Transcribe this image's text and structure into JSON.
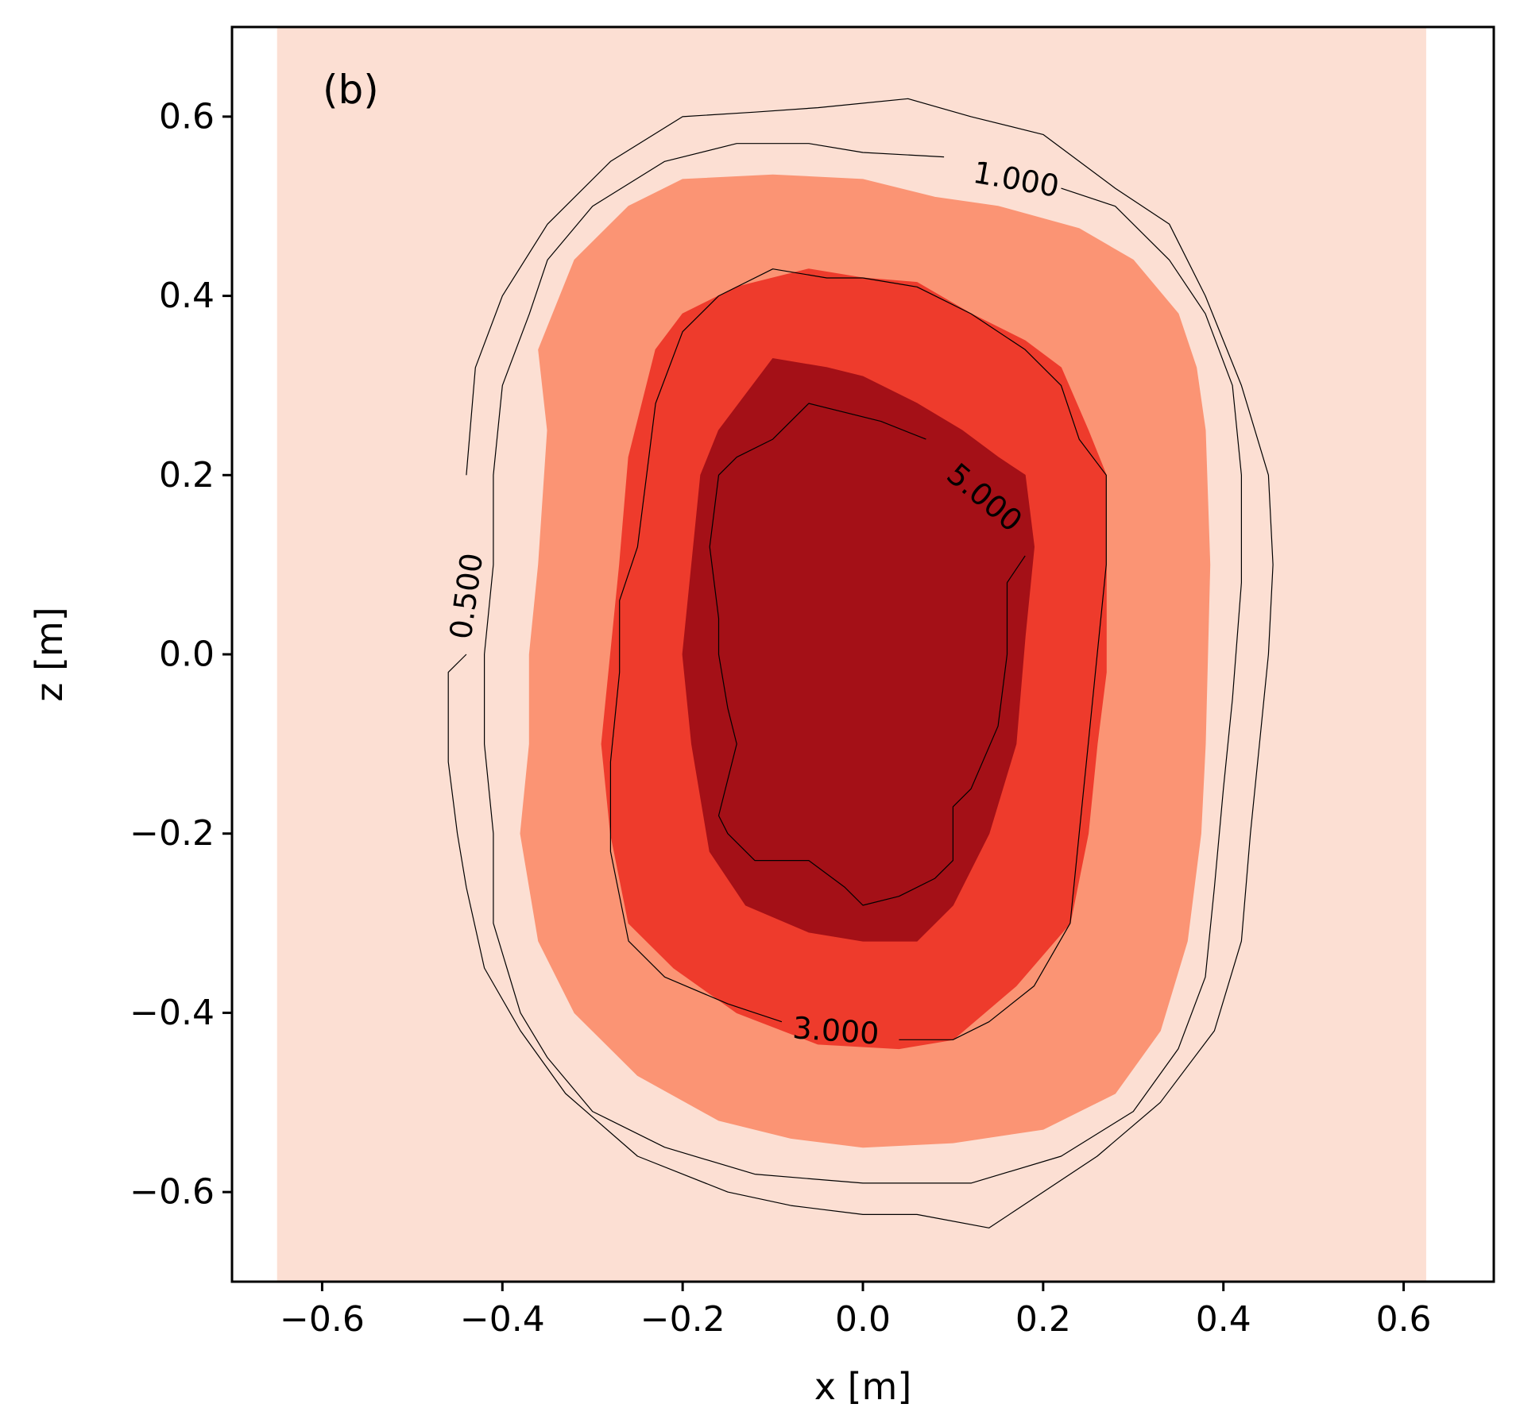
{
  "chart_data": {
    "type": "filled-contour",
    "panel_label": "(b)",
    "xlabel": "x [m]",
    "ylabel": "z [m]",
    "xlim": [
      -0.7,
      0.7
    ],
    "ylim": [
      -0.7,
      0.7
    ],
    "data_extent_x": [
      -0.65,
      0.625
    ],
    "x_ticks": [
      -0.6,
      -0.4,
      -0.2,
      0.0,
      0.2,
      0.4,
      0.6
    ],
    "y_ticks": [
      -0.6,
      -0.4,
      -0.2,
      0.0,
      0.2,
      0.4,
      0.6
    ],
    "x_tick_labels": [
      "−0.6",
      "−0.4",
      "−0.2",
      "0.0",
      "0.2",
      "0.4",
      "0.6"
    ],
    "y_tick_labels": [
      "−0.6",
      "−0.4",
      "−0.2",
      "0.0",
      "0.2",
      "0.4",
      "0.6"
    ],
    "colormap": "Reds",
    "fill_levels": [
      {
        "name": "background",
        "color": "#fcdfd3"
      },
      {
        "name": "level-2",
        "color": "#fb9474",
        "points": [
          [
            -0.36,
            0.34
          ],
          [
            -0.32,
            0.44
          ],
          [
            -0.26,
            0.5
          ],
          [
            -0.2,
            0.53
          ],
          [
            -0.1,
            0.535
          ],
          [
            0.0,
            0.53
          ],
          [
            0.08,
            0.51
          ],
          [
            0.15,
            0.5
          ],
          [
            0.24,
            0.475
          ],
          [
            0.3,
            0.44
          ],
          [
            0.35,
            0.38
          ],
          [
            0.37,
            0.32
          ],
          [
            0.38,
            0.25
          ],
          [
            0.385,
            0.1
          ],
          [
            0.38,
            -0.1
          ],
          [
            0.375,
            -0.2
          ],
          [
            0.36,
            -0.32
          ],
          [
            0.33,
            -0.42
          ],
          [
            0.28,
            -0.49
          ],
          [
            0.2,
            -0.53
          ],
          [
            0.1,
            -0.545
          ],
          [
            0.0,
            -0.55
          ],
          [
            -0.08,
            -0.54
          ],
          [
            -0.16,
            -0.52
          ],
          [
            -0.25,
            -0.47
          ],
          [
            -0.32,
            -0.4
          ],
          [
            -0.36,
            -0.32
          ],
          [
            -0.38,
            -0.2
          ],
          [
            -0.37,
            -0.1
          ],
          [
            -0.37,
            0.0
          ],
          [
            -0.36,
            0.1
          ],
          [
            -0.35,
            0.25
          ]
        ]
      },
      {
        "name": "level-3",
        "color": "#ee3b2c",
        "points": [
          [
            -0.23,
            0.34
          ],
          [
            -0.2,
            0.38
          ],
          [
            -0.14,
            0.41
          ],
          [
            -0.06,
            0.43
          ],
          [
            0.0,
            0.42
          ],
          [
            0.06,
            0.415
          ],
          [
            0.12,
            0.38
          ],
          [
            0.18,
            0.35
          ],
          [
            0.22,
            0.32
          ],
          [
            0.25,
            0.25
          ],
          [
            0.27,
            0.2
          ],
          [
            0.27,
            0.1
          ],
          [
            0.27,
            -0.02
          ],
          [
            0.26,
            -0.1
          ],
          [
            0.25,
            -0.2
          ],
          [
            0.23,
            -0.3
          ],
          [
            0.17,
            -0.37
          ],
          [
            0.1,
            -0.43
          ],
          [
            0.04,
            -0.44
          ],
          [
            -0.05,
            -0.435
          ],
          [
            -0.14,
            -0.4
          ],
          [
            -0.21,
            -0.35
          ],
          [
            -0.26,
            -0.3
          ],
          [
            -0.28,
            -0.2
          ],
          [
            -0.29,
            -0.1
          ],
          [
            -0.28,
            0.0
          ],
          [
            -0.27,
            0.1
          ],
          [
            -0.26,
            0.22
          ]
        ]
      },
      {
        "name": "level-4",
        "color": "#a41017",
        "points": [
          [
            -0.16,
            0.25
          ],
          [
            -0.1,
            0.33
          ],
          [
            -0.04,
            0.32
          ],
          [
            0.0,
            0.31
          ],
          [
            0.06,
            0.28
          ],
          [
            0.11,
            0.25
          ],
          [
            0.15,
            0.22
          ],
          [
            0.18,
            0.2
          ],
          [
            0.19,
            0.12
          ],
          [
            0.18,
            0.02
          ],
          [
            0.17,
            -0.1
          ],
          [
            0.14,
            -0.2
          ],
          [
            0.1,
            -0.28
          ],
          [
            0.06,
            -0.32
          ],
          [
            0.0,
            -0.32
          ],
          [
            -0.06,
            -0.31
          ],
          [
            -0.13,
            -0.28
          ],
          [
            -0.17,
            -0.22
          ],
          [
            -0.19,
            -0.1
          ],
          [
            -0.2,
            0.0
          ],
          [
            -0.19,
            0.1
          ],
          [
            -0.18,
            0.2
          ]
        ]
      }
    ],
    "contour_lines": [
      {
        "level": "0.500",
        "label": "0.500",
        "label_at": [
          -0.44,
          0.065
        ],
        "label_angle": -82,
        "points": [
          [
            -0.44,
            0.2
          ],
          [
            -0.43,
            0.32
          ],
          [
            -0.4,
            0.4
          ],
          [
            -0.35,
            0.48
          ],
          [
            -0.28,
            0.55
          ],
          [
            -0.2,
            0.6
          ],
          [
            -0.12,
            0.605
          ],
          [
            -0.05,
            0.61
          ],
          [
            0.05,
            0.62
          ],
          [
            0.12,
            0.6
          ],
          [
            0.2,
            0.58
          ],
          [
            0.28,
            0.52
          ],
          [
            0.34,
            0.48
          ],
          [
            0.38,
            0.4
          ],
          [
            0.42,
            0.3
          ],
          [
            0.45,
            0.2
          ],
          [
            0.455,
            0.1
          ],
          [
            0.45,
            0.0
          ],
          [
            0.44,
            -0.1
          ],
          [
            0.43,
            -0.2
          ],
          [
            0.42,
            -0.32
          ],
          [
            0.39,
            -0.42
          ],
          [
            0.33,
            -0.5
          ],
          [
            0.26,
            -0.56
          ],
          [
            0.2,
            -0.6
          ],
          [
            0.14,
            -0.64
          ],
          [
            0.06,
            -0.625
          ],
          [
            0.0,
            -0.625
          ],
          [
            -0.08,
            -0.615
          ],
          [
            -0.15,
            -0.6
          ],
          [
            -0.25,
            -0.56
          ],
          [
            -0.33,
            -0.49
          ],
          [
            -0.38,
            -0.42
          ],
          [
            -0.42,
            -0.35
          ],
          [
            -0.44,
            -0.26
          ],
          [
            -0.45,
            -0.2
          ],
          [
            -0.46,
            -0.12
          ],
          [
            -0.46,
            -0.02
          ],
          [
            -0.44,
            0.0
          ]
        ]
      },
      {
        "level": "1.000",
        "label": "1.000",
        "label_at": [
          0.17,
          0.53
        ],
        "label_angle": 10,
        "points": [
          [
            0.09,
            0.555
          ],
          [
            0.0,
            0.56
          ],
          [
            -0.06,
            0.57
          ],
          [
            -0.14,
            0.57
          ],
          [
            -0.22,
            0.55
          ],
          [
            -0.3,
            0.5
          ],
          [
            -0.35,
            0.44
          ],
          [
            -0.37,
            0.38
          ],
          [
            -0.4,
            0.3
          ],
          [
            -0.41,
            0.2
          ],
          [
            -0.41,
            0.1
          ],
          [
            -0.42,
            0.0
          ],
          [
            -0.42,
            -0.1
          ],
          [
            -0.41,
            -0.2
          ],
          [
            -0.41,
            -0.3
          ],
          [
            -0.38,
            -0.4
          ],
          [
            -0.35,
            -0.45
          ],
          [
            -0.3,
            -0.51
          ],
          [
            -0.22,
            -0.55
          ],
          [
            -0.12,
            -0.58
          ],
          [
            0.0,
            -0.59
          ],
          [
            0.12,
            -0.59
          ],
          [
            0.22,
            -0.56
          ],
          [
            0.3,
            -0.51
          ],
          [
            0.35,
            -0.44
          ],
          [
            0.38,
            -0.36
          ],
          [
            0.39,
            -0.26
          ],
          [
            0.4,
            -0.15
          ],
          [
            0.41,
            -0.05
          ],
          [
            0.42,
            0.08
          ],
          [
            0.42,
            0.2
          ],
          [
            0.41,
            0.3
          ],
          [
            0.38,
            0.38
          ],
          [
            0.34,
            0.44
          ],
          [
            0.28,
            0.5
          ],
          [
            0.22,
            0.52
          ]
        ]
      },
      {
        "level": "3.000",
        "label": "3.000",
        "label_at": [
          -0.03,
          -0.42
        ],
        "label_angle": 4,
        "points": [
          [
            -0.09,
            -0.41
          ],
          [
            -0.15,
            -0.39
          ],
          [
            -0.22,
            -0.36
          ],
          [
            -0.26,
            -0.32
          ],
          [
            -0.28,
            -0.22
          ],
          [
            -0.28,
            -0.12
          ],
          [
            -0.27,
            -0.02
          ],
          [
            -0.27,
            0.06
          ],
          [
            -0.25,
            0.12
          ],
          [
            -0.24,
            0.2
          ],
          [
            -0.23,
            0.28
          ],
          [
            -0.2,
            0.36
          ],
          [
            -0.16,
            0.4
          ],
          [
            -0.1,
            0.43
          ],
          [
            -0.04,
            0.42
          ],
          [
            0.0,
            0.42
          ],
          [
            0.06,
            0.41
          ],
          [
            0.12,
            0.38
          ],
          [
            0.18,
            0.34
          ],
          [
            0.22,
            0.3
          ],
          [
            0.24,
            0.24
          ],
          [
            0.27,
            0.2
          ],
          [
            0.27,
            0.1
          ],
          [
            0.26,
            0.0
          ],
          [
            0.25,
            -0.1
          ],
          [
            0.24,
            -0.2
          ],
          [
            0.23,
            -0.3
          ],
          [
            0.19,
            -0.37
          ],
          [
            0.14,
            -0.41
          ],
          [
            0.1,
            -0.43
          ],
          [
            0.04,
            -0.43
          ]
        ]
      },
      {
        "level": "5.000",
        "label": "5.000",
        "label_at": [
          0.135,
          0.175
        ],
        "label_angle": 40,
        "points": [
          [
            0.07,
            0.24
          ],
          [
            0.02,
            0.26
          ],
          [
            -0.06,
            0.28
          ],
          [
            -0.1,
            0.24
          ],
          [
            -0.14,
            0.22
          ],
          [
            -0.16,
            0.2
          ],
          [
            -0.17,
            0.12
          ],
          [
            -0.16,
            0.04
          ],
          [
            -0.16,
            0.0
          ],
          [
            -0.15,
            -0.06
          ],
          [
            -0.14,
            -0.1
          ],
          [
            -0.16,
            -0.18
          ],
          [
            -0.15,
            -0.2
          ],
          [
            -0.12,
            -0.23
          ],
          [
            -0.06,
            -0.23
          ],
          [
            -0.02,
            -0.26
          ],
          [
            0.0,
            -0.28
          ],
          [
            0.04,
            -0.27
          ],
          [
            0.08,
            -0.25
          ],
          [
            0.1,
            -0.23
          ],
          [
            0.1,
            -0.17
          ],
          [
            0.12,
            -0.15
          ],
          [
            0.15,
            -0.08
          ],
          [
            0.16,
            0.0
          ],
          [
            0.16,
            0.05
          ],
          [
            0.16,
            0.08
          ],
          [
            0.18,
            0.11
          ]
        ]
      }
    ]
  }
}
